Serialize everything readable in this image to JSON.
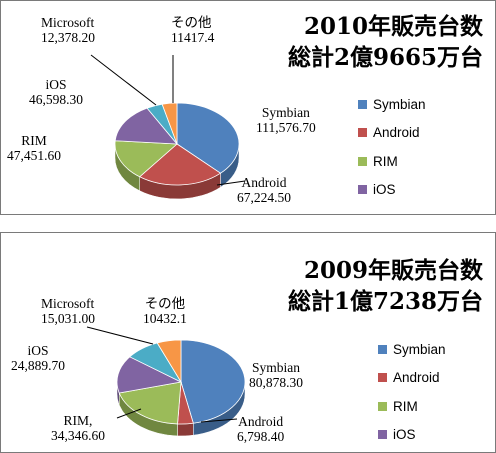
{
  "colors": {
    "Symbian": "#4f81bd",
    "Android": "#c0504d",
    "RIM": "#9bbb59",
    "iOS": "#8064a2",
    "Microsoft": "#4bacc6",
    "その他": "#f79646"
  },
  "chart_data": [
    {
      "type": "pie",
      "title_line1": "2010年販売台数",
      "title_line2": "総計2億9665万台",
      "legend": [
        "Symbian",
        "Android",
        "RIM",
        "iOS"
      ],
      "legend_position": "right",
      "slices": [
        {
          "name": "Symbian",
          "value": "111,576.70",
          "num": 111576.7
        },
        {
          "name": "Android",
          "value": "67,224.50",
          "num": 67224.5
        },
        {
          "name": "RIM",
          "value": "47,451.60",
          "num": 47451.6
        },
        {
          "name": "iOS",
          "value": "46,598.30",
          "num": 46598.3
        },
        {
          "name": "Microsoft",
          "value": "12,378.20",
          "num": 12378.2
        },
        {
          "name": "その他",
          "value": "11417.4",
          "num": 11417.4
        }
      ]
    },
    {
      "type": "pie",
      "title_line1": "2009年販売台数",
      "title_line2": "総計1億7238万台",
      "legend": [
        "Symbian",
        "Android",
        "RIM",
        "iOS"
      ],
      "legend_position": "right",
      "slices": [
        {
          "name": "Symbian",
          "value": "80,878.30",
          "num": 80878.3
        },
        {
          "name": "Android",
          "value": "6,798.40",
          "num": 6798.4
        },
        {
          "name": "RIM,",
          "value": "34,346.60",
          "num": 34346.6
        },
        {
          "name": "iOS",
          "value": "24,889.70",
          "num": 24889.7
        },
        {
          "name": "Microsoft",
          "value": "15,031.00",
          "num": 15031.0
        },
        {
          "name": "その他",
          "value": "10432.1",
          "num": 10432.1
        }
      ]
    }
  ]
}
